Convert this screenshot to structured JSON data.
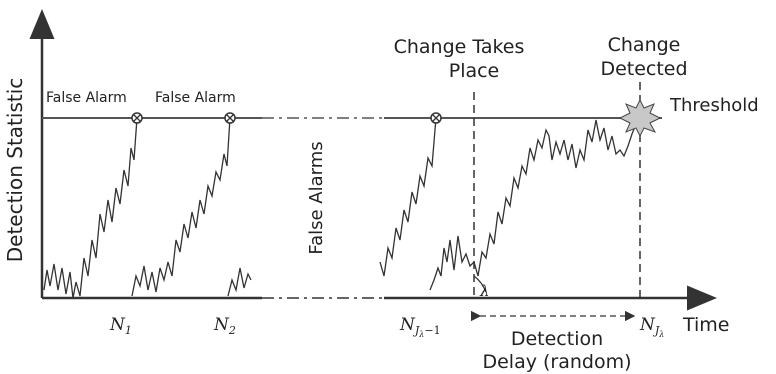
{
  "labels": {
    "y_axis": "Detection Statistic",
    "x_axis": "Time",
    "threshold": "Threshold",
    "false_alarm_1": "False Alarm",
    "false_alarm_2": "False Alarm",
    "false_alarms_vertical": "False Alarms",
    "change_takes_place_line1": "Change Takes",
    "change_takes_place_line2": "Place",
    "change_detected_line1": "Change",
    "change_detected_line2": "Detected",
    "detection_delay_line1": "Detection",
    "detection_delay_line2": "Delay (random)",
    "lambda": "λ"
  },
  "ticks": {
    "n1": {
      "base": "N",
      "sub": "1"
    },
    "n2": {
      "base": "N",
      "sub": "2"
    },
    "nj_minus": {
      "base": "N",
      "sub": "J",
      "subsub": "λ",
      "suffix": "−1"
    },
    "nj": {
      "base": "N",
      "sub": "J",
      "subsub": "λ"
    }
  },
  "colors": {
    "line": "#333333",
    "threshold": "#555555",
    "detected_burst": "#c8c8c8"
  }
}
